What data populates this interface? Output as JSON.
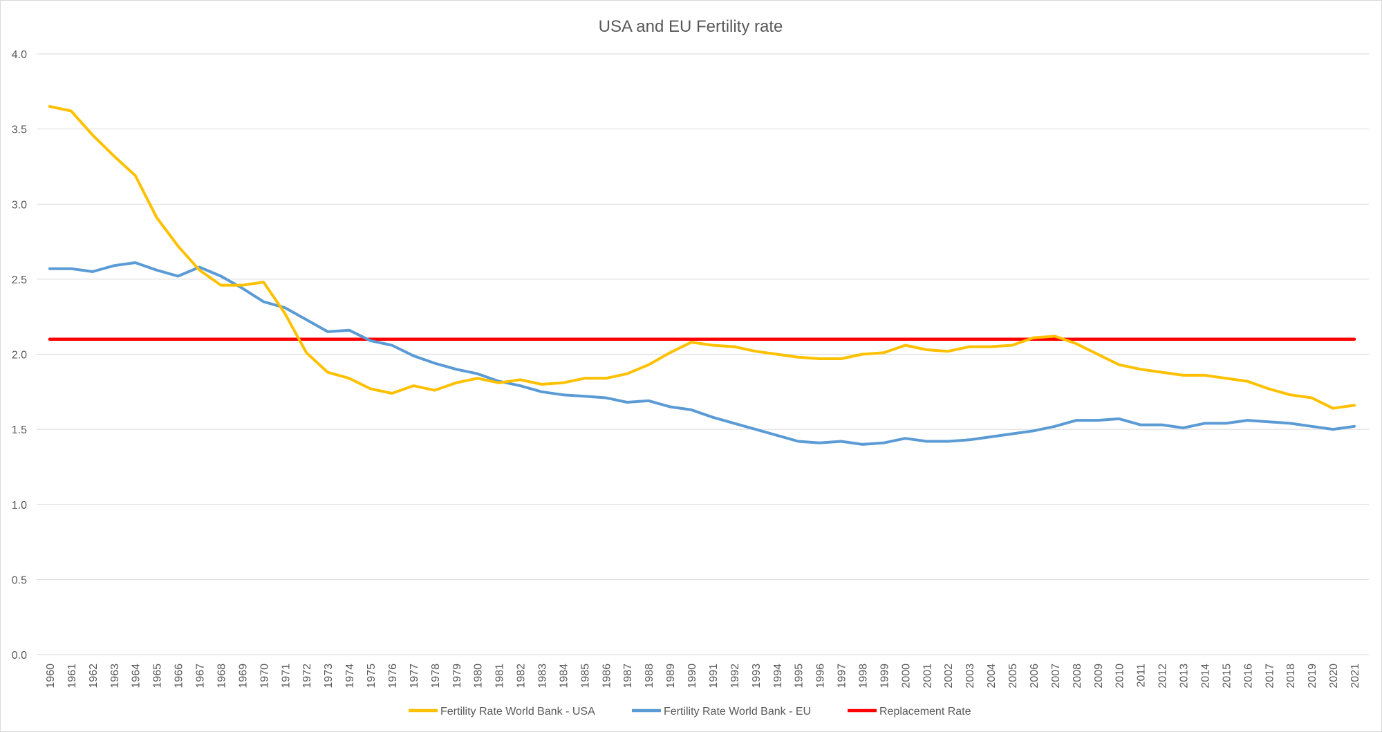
{
  "chart_data": {
    "type": "line",
    "title": "USA and EU Fertility rate",
    "xlabel": "",
    "ylabel": "",
    "ylim": [
      0.0,
      4.0
    ],
    "y_ticks": [
      "0.0",
      "0.5",
      "1.0",
      "1.5",
      "2.0",
      "2.5",
      "3.0",
      "3.5",
      "4.0"
    ],
    "grid": "horizontal",
    "legend_position": "bottom",
    "categories": [
      "1960",
      "1961",
      "1962",
      "1963",
      "1964",
      "1965",
      "1966",
      "1967",
      "1968",
      "1969",
      "1970",
      "1971",
      "1972",
      "1973",
      "1974",
      "1975",
      "1976",
      "1977",
      "1978",
      "1979",
      "1980",
      "1981",
      "1982",
      "1983",
      "1984",
      "1985",
      "1986",
      "1987",
      "1988",
      "1989",
      "1990",
      "1991",
      "1992",
      "1993",
      "1994",
      "1995",
      "1996",
      "1997",
      "1998",
      "1999",
      "2000",
      "2001",
      "2002",
      "2003",
      "2004",
      "2005",
      "2006",
      "2007",
      "2008",
      "2009",
      "2010",
      "2011",
      "2012",
      "2013",
      "2014",
      "2015",
      "2016",
      "2017",
      "2018",
      "2019",
      "2020",
      "2021"
    ],
    "series": [
      {
        "name": "Fertility Rate World Bank - USA",
        "color": "#FFC000",
        "values": [
          3.65,
          3.62,
          3.46,
          3.32,
          3.19,
          2.91,
          2.72,
          2.56,
          2.46,
          2.46,
          2.48,
          2.27,
          2.01,
          1.88,
          1.84,
          1.77,
          1.74,
          1.79,
          1.76,
          1.81,
          1.84,
          1.81,
          1.83,
          1.8,
          1.81,
          1.84,
          1.84,
          1.87,
          1.93,
          2.01,
          2.08,
          2.06,
          2.05,
          2.02,
          2.0,
          1.98,
          1.97,
          1.97,
          2.0,
          2.01,
          2.06,
          2.03,
          2.02,
          2.05,
          2.05,
          2.06,
          2.11,
          2.12,
          2.07,
          2.0,
          1.93,
          1.9,
          1.88,
          1.86,
          1.86,
          1.84,
          1.82,
          1.77,
          1.73,
          1.71,
          1.64,
          1.66
        ]
      },
      {
        "name": "Fertility Rate World Bank - EU",
        "color": "#5B9BD5",
        "values": [
          2.57,
          2.57,
          2.55,
          2.59,
          2.61,
          2.56,
          2.52,
          2.58,
          2.52,
          2.44,
          2.35,
          2.31,
          2.23,
          2.15,
          2.16,
          2.09,
          2.06,
          1.99,
          1.94,
          1.9,
          1.87,
          1.82,
          1.79,
          1.75,
          1.73,
          1.72,
          1.71,
          1.68,
          1.69,
          1.65,
          1.63,
          1.58,
          1.54,
          1.5,
          1.46,
          1.42,
          1.41,
          1.42,
          1.4,
          1.41,
          1.44,
          1.42,
          1.42,
          1.43,
          1.45,
          1.47,
          1.49,
          1.52,
          1.56,
          1.56,
          1.57,
          1.53,
          1.53,
          1.51,
          1.54,
          1.54,
          1.56,
          1.55,
          1.54,
          1.52,
          1.5,
          1.52
        ]
      },
      {
        "name": "Replacement Rate",
        "color": "#FF0000",
        "constant": 2.1
      }
    ]
  }
}
